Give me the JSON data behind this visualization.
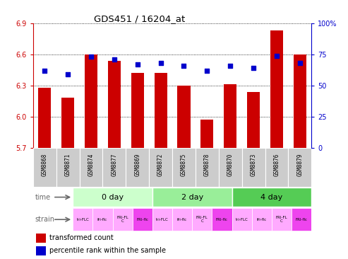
{
  "title": "GDS451 / 16204_at",
  "samples": [
    "GSM8868",
    "GSM8871",
    "GSM8874",
    "GSM8877",
    "GSM8869",
    "GSM8872",
    "GSM8875",
    "GSM8878",
    "GSM8870",
    "GSM8873",
    "GSM8876",
    "GSM8879"
  ],
  "transformed_counts": [
    6.28,
    6.18,
    6.6,
    6.54,
    6.42,
    6.42,
    6.3,
    5.97,
    6.31,
    6.24,
    6.83,
    6.6
  ],
  "percentile_ranks": [
    62,
    59,
    73,
    71,
    67,
    68,
    66,
    62,
    66,
    64,
    74,
    68
  ],
  "ylim_left": [
    5.7,
    6.9
  ],
  "yticks_left": [
    5.7,
    6.0,
    6.3,
    6.6,
    6.9
  ],
  "yticks_right": [
    0,
    25,
    50,
    75,
    100
  ],
  "yright_lim": [
    0,
    100
  ],
  "bar_color": "#cc0000",
  "dot_color": "#0000cc",
  "time_groups": [
    {
      "label": "0 day",
      "start": 0,
      "end": 4
    },
    {
      "label": "2 day",
      "start": 4,
      "end": 8
    },
    {
      "label": "4 day",
      "start": 8,
      "end": 12
    }
  ],
  "time_colors": [
    "#ccffcc",
    "#99ee99",
    "#55cc55"
  ],
  "strain_labels": [
    "tri-FLC",
    "fri-flc",
    "FRI-FLC",
    "FRI-flc",
    "tri-FLC",
    "fri-flc",
    "FRI-FLC",
    "FRI-flc",
    "tri-FLC",
    "fri-flc",
    "FRI-FLC",
    "FRI-flc"
  ],
  "strain_colors": [
    "#ffaaff",
    "#ffaaff",
    "#ffaaff",
    "#ee44ee",
    "#ffaaff",
    "#ffaaff",
    "#ffaaff",
    "#ee44ee",
    "#ffaaff",
    "#ffaaff",
    "#ffaaff",
    "#ee44ee"
  ],
  "sample_box_color": "#cccccc",
  "legend_red_label": "transformed count",
  "legend_blue_label": "percentile rank within the sample"
}
